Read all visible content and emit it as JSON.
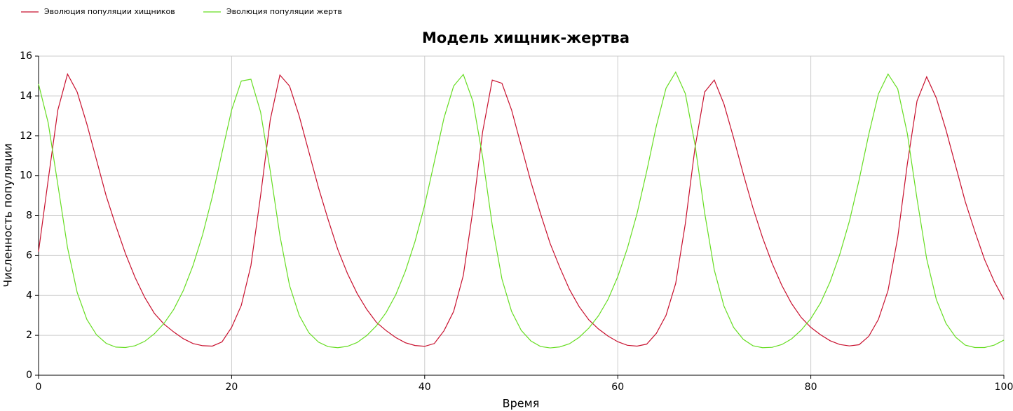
{
  "chart_data": {
    "type": "line",
    "title": "Модель хищник-жертва",
    "x_label": "Время",
    "y_label": "Численность популяции",
    "x": [
      0,
      1,
      2,
      3,
      4,
      5,
      6,
      7,
      8,
      9,
      10,
      11,
      12,
      13,
      14,
      15,
      16,
      17,
      18,
      19,
      20,
      21,
      22,
      23,
      24,
      25,
      26,
      27,
      28,
      29,
      30,
      31,
      32,
      33,
      34,
      35,
      36,
      37,
      38,
      39,
      40,
      41,
      42,
      43,
      44,
      45,
      46,
      47,
      48,
      49,
      50,
      51,
      52,
      53,
      54,
      55,
      56,
      57,
      58,
      59,
      60,
      61,
      62,
      63,
      64,
      65,
      66,
      67,
      68,
      69,
      70,
      71,
      72,
      73,
      74,
      75,
      76,
      77,
      78,
      79,
      80,
      81,
      82,
      83,
      84,
      85,
      86,
      87,
      88,
      89,
      90,
      91,
      92,
      93,
      94,
      95,
      96,
      97,
      98,
      99,
      100
    ],
    "series": [
      {
        "name": "Эволюция популяции хищников",
        "color": "#c8102e",
        "values": [
          6.2,
          9.8,
          13.3,
          15.1,
          14.2,
          12.6,
          10.8,
          9.0,
          7.5,
          6.1,
          4.9,
          3.9,
          3.1,
          2.56,
          2.17,
          1.83,
          1.59,
          1.48,
          1.46,
          1.67,
          2.4,
          3.5,
          5.5,
          9.0,
          12.8,
          15.05,
          14.5,
          13.0,
          11.2,
          9.4,
          7.8,
          6.3,
          5.1,
          4.1,
          3.3,
          2.65,
          2.24,
          1.89,
          1.63,
          1.49,
          1.45,
          1.59,
          2.23,
          3.2,
          5.0,
          8.3,
          12.2,
          14.8,
          14.64,
          13.3,
          11.5,
          9.7,
          8.1,
          6.6,
          5.4,
          4.3,
          3.44,
          2.78,
          2.32,
          1.96,
          1.68,
          1.5,
          1.46,
          1.56,
          2.1,
          3.0,
          4.6,
          7.6,
          11.4,
          14.2,
          14.8,
          13.6,
          11.9,
          10.1,
          8.4,
          6.9,
          5.6,
          4.5,
          3.6,
          2.9,
          2.4,
          2.03,
          1.73,
          1.54,
          1.47,
          1.53,
          1.95,
          2.8,
          4.25,
          6.9,
          10.6,
          13.75,
          14.96,
          13.9,
          12.3,
          10.5,
          8.7,
          7.2,
          5.8,
          4.7,
          3.8
        ]
      },
      {
        "name": "Эволюция популяции жертв",
        "color": "#66dd22",
        "values": [
          14.6,
          12.65,
          9.55,
          6.4,
          4.15,
          2.8,
          2.03,
          1.6,
          1.41,
          1.39,
          1.48,
          1.7,
          2.08,
          2.6,
          3.3,
          4.25,
          5.5,
          7.05,
          8.95,
          11.15,
          13.3,
          14.75,
          14.84,
          13.2,
          10.25,
          7.0,
          4.5,
          3.0,
          2.13,
          1.66,
          1.43,
          1.38,
          1.45,
          1.64,
          1.99,
          2.48,
          3.14,
          4.03,
          5.22,
          6.71,
          8.53,
          10.7,
          12.9,
          14.5,
          15.08,
          13.73,
          10.95,
          7.52,
          4.83,
          3.2,
          2.25,
          1.72,
          1.44,
          1.37,
          1.42,
          1.58,
          1.9,
          2.36,
          2.98,
          3.81,
          4.94,
          6.37,
          8.11,
          10.23,
          12.5,
          14.39,
          15.2,
          14.12,
          11.57,
          8.15,
          5.28,
          3.47,
          2.4,
          1.8,
          1.48,
          1.38,
          1.4,
          1.54,
          1.82,
          2.26,
          2.84,
          3.62,
          4.69,
          6.06,
          7.73,
          9.79,
          12.07,
          14.1,
          15.1,
          14.36,
          12.11,
          8.85,
          5.84,
          3.8,
          2.6,
          1.91,
          1.51,
          1.39,
          1.39,
          1.51,
          1.76
        ]
      }
    ],
    "xlim": [
      0,
      100
    ],
    "xticks": [
      0,
      20,
      40,
      60,
      80,
      100
    ],
    "ylim": [
      0,
      16
    ],
    "yticks": [
      0,
      2,
      4,
      6,
      8,
      10,
      12,
      14,
      16
    ],
    "grid": true,
    "legend": "top-left"
  }
}
